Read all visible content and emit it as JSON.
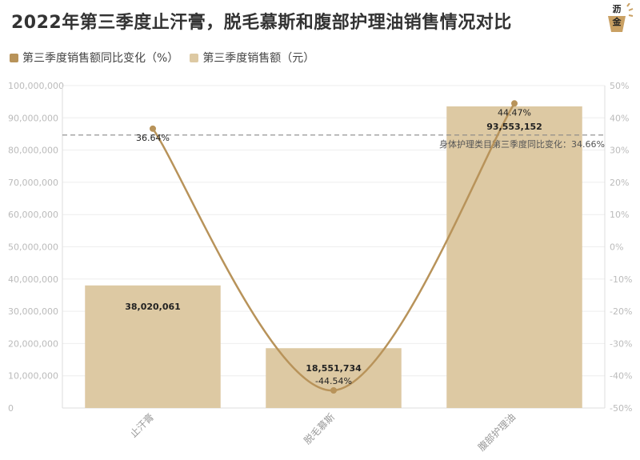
{
  "title": "2022年第三季度止汗膏，脱毛慕斯和腹部护理油销售情况对比",
  "logo": {
    "line1": "沥",
    "line2": "金"
  },
  "colors": {
    "bar": "#ddc9a3",
    "line": "#b8935a",
    "dot": "#b8935a",
    "refline": "#888888",
    "grid": "#eeeeee"
  },
  "chart_data": {
    "type": "bar",
    "title": "2022年第三季度止汗膏，脱毛慕斯和腹部护理油销售情况对比",
    "categories": [
      "止汗膏",
      "脱毛慕斯",
      "腹部护理油"
    ],
    "series": [
      {
        "name": "第三季度销售额（元）",
        "type": "bar",
        "axis": "left",
        "values": [
          38020061,
          18551734,
          93553152
        ],
        "labels": [
          "38,020,061",
          "18,551,734",
          "93,553,152"
        ]
      },
      {
        "name": "第三季度销售额同比变化（%）",
        "type": "line",
        "axis": "right",
        "values": [
          36.64,
          -44.54,
          44.47
        ],
        "labels": [
          "36.64%",
          "-44.54%",
          "44.47%"
        ]
      }
    ],
    "left_axis": {
      "ylim": [
        0,
        100000000
      ],
      "ticks": [
        "0",
        "10,000,000",
        "20,000,000",
        "30,000,000",
        "40,000,000",
        "50,000,000",
        "60,000,000",
        "70,000,000",
        "80,000,000",
        "90,000,000",
        "100,000,000"
      ]
    },
    "right_axis": {
      "ylim": [
        -50,
        50
      ],
      "ticks": [
        "-50%",
        "-40%",
        "-30%",
        "-20%",
        "-10%",
        "0%",
        "10%",
        "20%",
        "30%",
        "40%",
        "50%"
      ]
    },
    "reference_line": {
      "value": 34.66,
      "axis": "right",
      "label": "身体护理类目第三季度同比变化：34.66%"
    },
    "legend_placement": "top-left",
    "grid": true
  }
}
